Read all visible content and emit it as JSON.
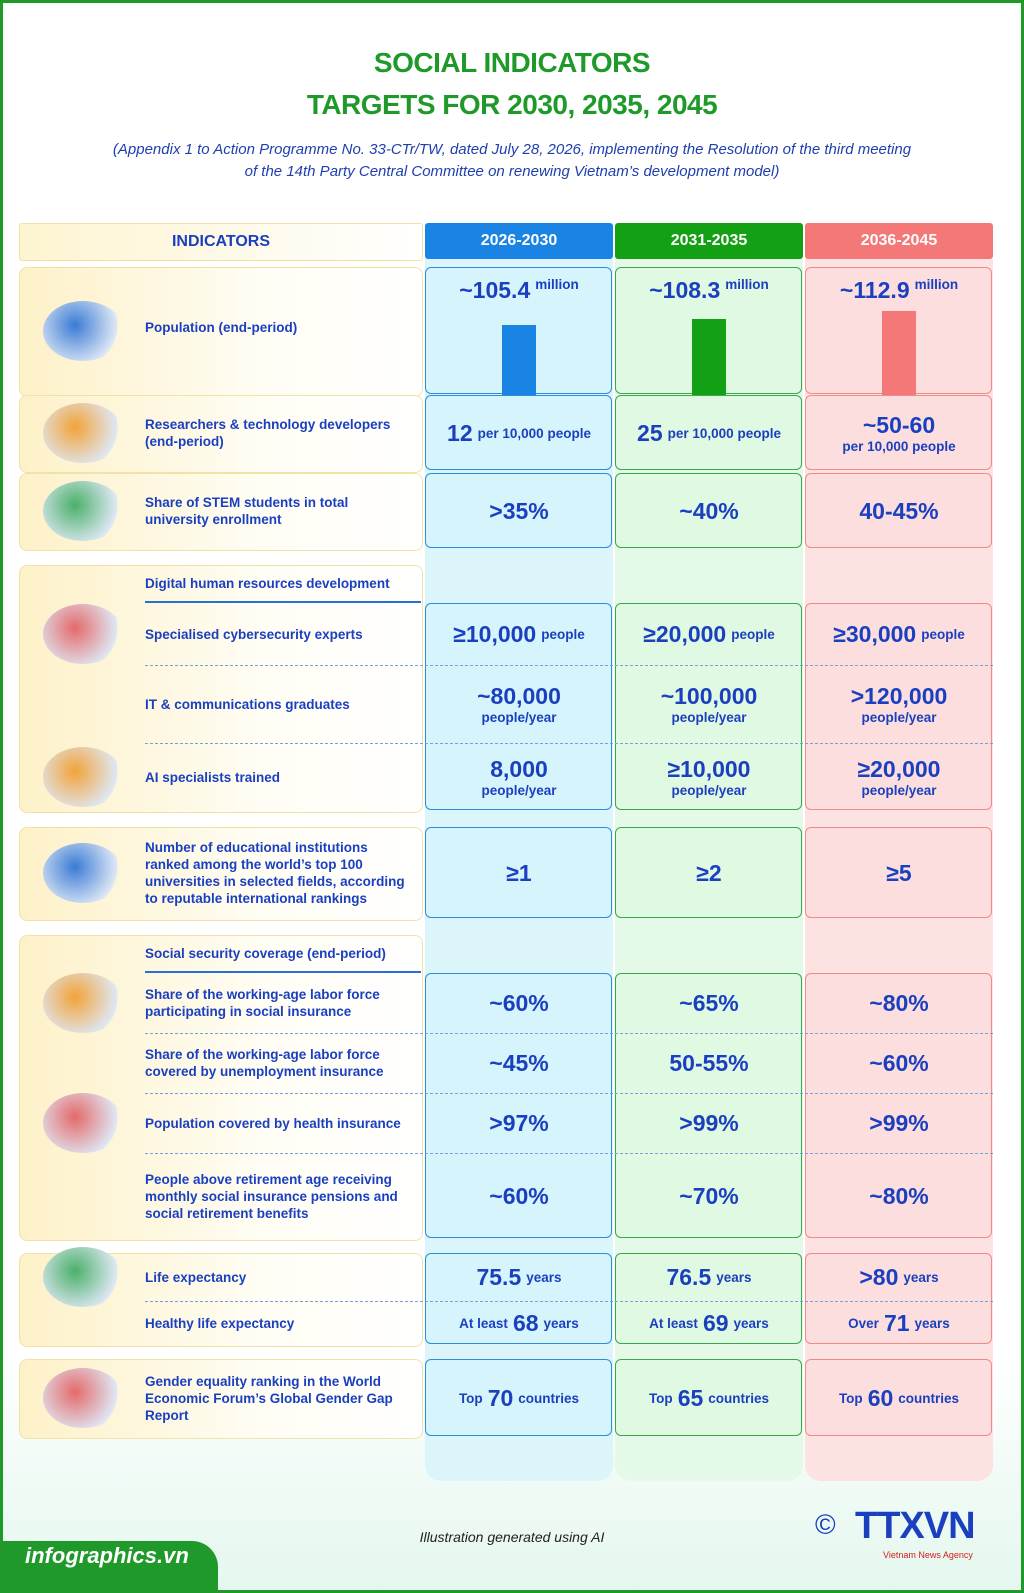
{
  "header": {
    "title_line1": "SOCIAL INDICATORS",
    "title_line2": "TARGETS FOR 2030, 2035, 2045",
    "subtitle_line1": "(Appendix 1 to Action Programme No. 33-CTr/TW, dated July 28, 2026, implementing the Resolution of the third meeting",
    "subtitle_line2": "of the 14th Party Central Committee on renewing Vietnam’s development model)"
  },
  "columns": {
    "indicators": "INDICATORS",
    "periods": [
      "2026-2030",
      "2031-2035",
      "2036-2045"
    ]
  },
  "sections": [
    {
      "label": "Population (end-period)",
      "cells": [
        {
          "value": "~105.4",
          "unit": "million"
        },
        {
          "value": "~108.3",
          "unit": "million"
        },
        {
          "value": "~112.9",
          "unit": "million"
        }
      ]
    },
    {
      "label": "Researchers & technology developers (end-period)",
      "cells": [
        {
          "value": "12",
          "unit": "per 10,000 people"
        },
        {
          "value": "25",
          "unit": "per 10,000 people"
        },
        {
          "value": "~50-60",
          "unit": "per 10,000 people"
        }
      ]
    },
    {
      "label": "Share of STEM students in total university enrollment",
      "cells": [
        {
          "value": ">35%"
        },
        {
          "value": "~40%"
        },
        {
          "value": "40-45%"
        }
      ]
    },
    {
      "title": "Digital human resources development",
      "items": [
        {
          "label": "Specialised cybersecurity experts",
          "cells": [
            {
              "value": "≥10,000",
              "unit": "people"
            },
            {
              "value": "≥20,000",
              "unit": "people"
            },
            {
              "value": "≥30,000",
              "unit": "people"
            }
          ]
        },
        {
          "label": "IT & communications graduates",
          "cells": [
            {
              "value": "~80,000",
              "unit": "people/year"
            },
            {
              "value": "~100,000",
              "unit": "people/year"
            },
            {
              "value": ">120,000",
              "unit": "people/year"
            }
          ]
        },
        {
          "label": "AI specialists trained",
          "cells": [
            {
              "value": "8,000",
              "unit": "people/year"
            },
            {
              "value": "≥10,000",
              "unit": "people/year"
            },
            {
              "value": "≥20,000",
              "unit": "people/year"
            }
          ]
        }
      ]
    },
    {
      "label": "Number of educational institutions ranked among the world’s top 100 universities in selected fields, according to reputable international rankings",
      "cells": [
        {
          "value": "≥1"
        },
        {
          "value": "≥2"
        },
        {
          "value": "≥5"
        }
      ]
    },
    {
      "title": "Social security coverage (end-period)",
      "items": [
        {
          "label": "Share of the working-age labor force participating in social insurance",
          "cells": [
            {
              "value": "~60%"
            },
            {
              "value": "~65%"
            },
            {
              "value": "~80%"
            }
          ]
        },
        {
          "label": "Share of the working-age labor force covered by unemployment insurance",
          "cells": [
            {
              "value": "~45%"
            },
            {
              "value": "50-55%"
            },
            {
              "value": "~60%"
            }
          ]
        },
        {
          "label": "Population covered by health insurance",
          "cells": [
            {
              "value": ">97%"
            },
            {
              "value": ">99%"
            },
            {
              "value": ">99%"
            }
          ]
        },
        {
          "label": "People above retirement age receiving monthly social insurance pensions and social retirement benefits",
          "cells": [
            {
              "value": "~60%"
            },
            {
              "value": "~70%"
            },
            {
              "value": "~80%"
            }
          ]
        }
      ]
    },
    {
      "items": [
        {
          "label": "Life expectancy",
          "cells": [
            {
              "value": "75.5",
              "unit": "years"
            },
            {
              "value": "76.5",
              "unit": "years"
            },
            {
              "value": ">80",
              "unit": "years"
            }
          ]
        },
        {
          "label": "Healthy life expectancy",
          "cells": [
            {
              "prefix": "At least",
              "value": "68",
              "unit": "years"
            },
            {
              "prefix": "At least",
              "value": "69",
              "unit": "years"
            },
            {
              "prefix": "Over",
              "value": "71",
              "unit": "years"
            }
          ]
        }
      ]
    },
    {
      "label": "Gender equality ranking in the World Economic Forum’s Global Gender Gap Report",
      "cells": [
        {
          "prefix": "Top",
          "value": "70",
          "unit": "countries"
        },
        {
          "prefix": "Top",
          "value": "65",
          "unit": "countries"
        },
        {
          "prefix": "Top",
          "value": "60",
          "unit": "countries"
        }
      ]
    }
  ],
  "footer": {
    "note": "Illustration generated using AI",
    "site": "infographics.vn",
    "copyright": "©",
    "agency": "TTXVN",
    "agency_sub": "Vietnam News Agency"
  }
}
